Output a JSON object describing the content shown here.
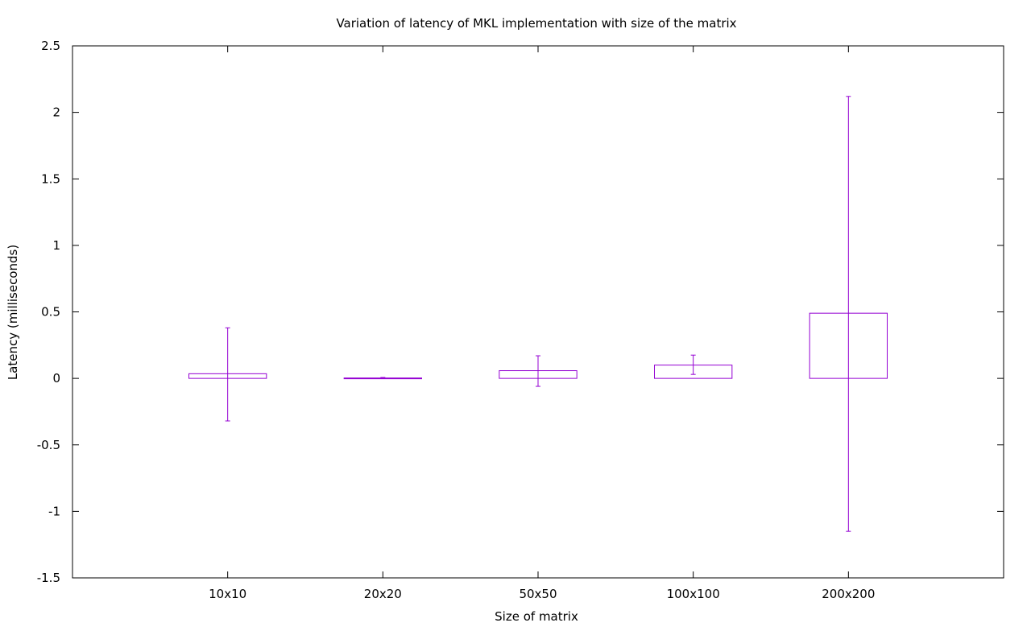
{
  "chart_data": {
    "type": "bar",
    "title": "Variation of latency of MKL implementation with size of the matrix",
    "xlabel": "Size of matrix",
    "ylabel": "Latency (milliseconds)",
    "categories": [
      "10x10",
      "20x20",
      "50x50",
      "100x100",
      "200x200"
    ],
    "series": [
      {
        "values": [
          0.035,
          0.003,
          0.058,
          0.1,
          0.49
        ],
        "errors": [
          {
            "low": -0.32,
            "high": 0.38
          },
          {
            "low": -0.002,
            "high": 0.007
          },
          {
            "low": -0.06,
            "high": 0.17
          },
          {
            "low": 0.03,
            "high": 0.175
          },
          {
            "low": -1.15,
            "high": 2.12
          }
        ],
        "color": "#9400d3"
      }
    ],
    "ylim": [
      -1.5,
      2.5
    ],
    "yticks": [
      "-1.5",
      "-1",
      "-0.5",
      "0",
      "0.5",
      "1",
      "1.5",
      "2",
      "2.5"
    ],
    "grid": false,
    "legend": "none"
  }
}
